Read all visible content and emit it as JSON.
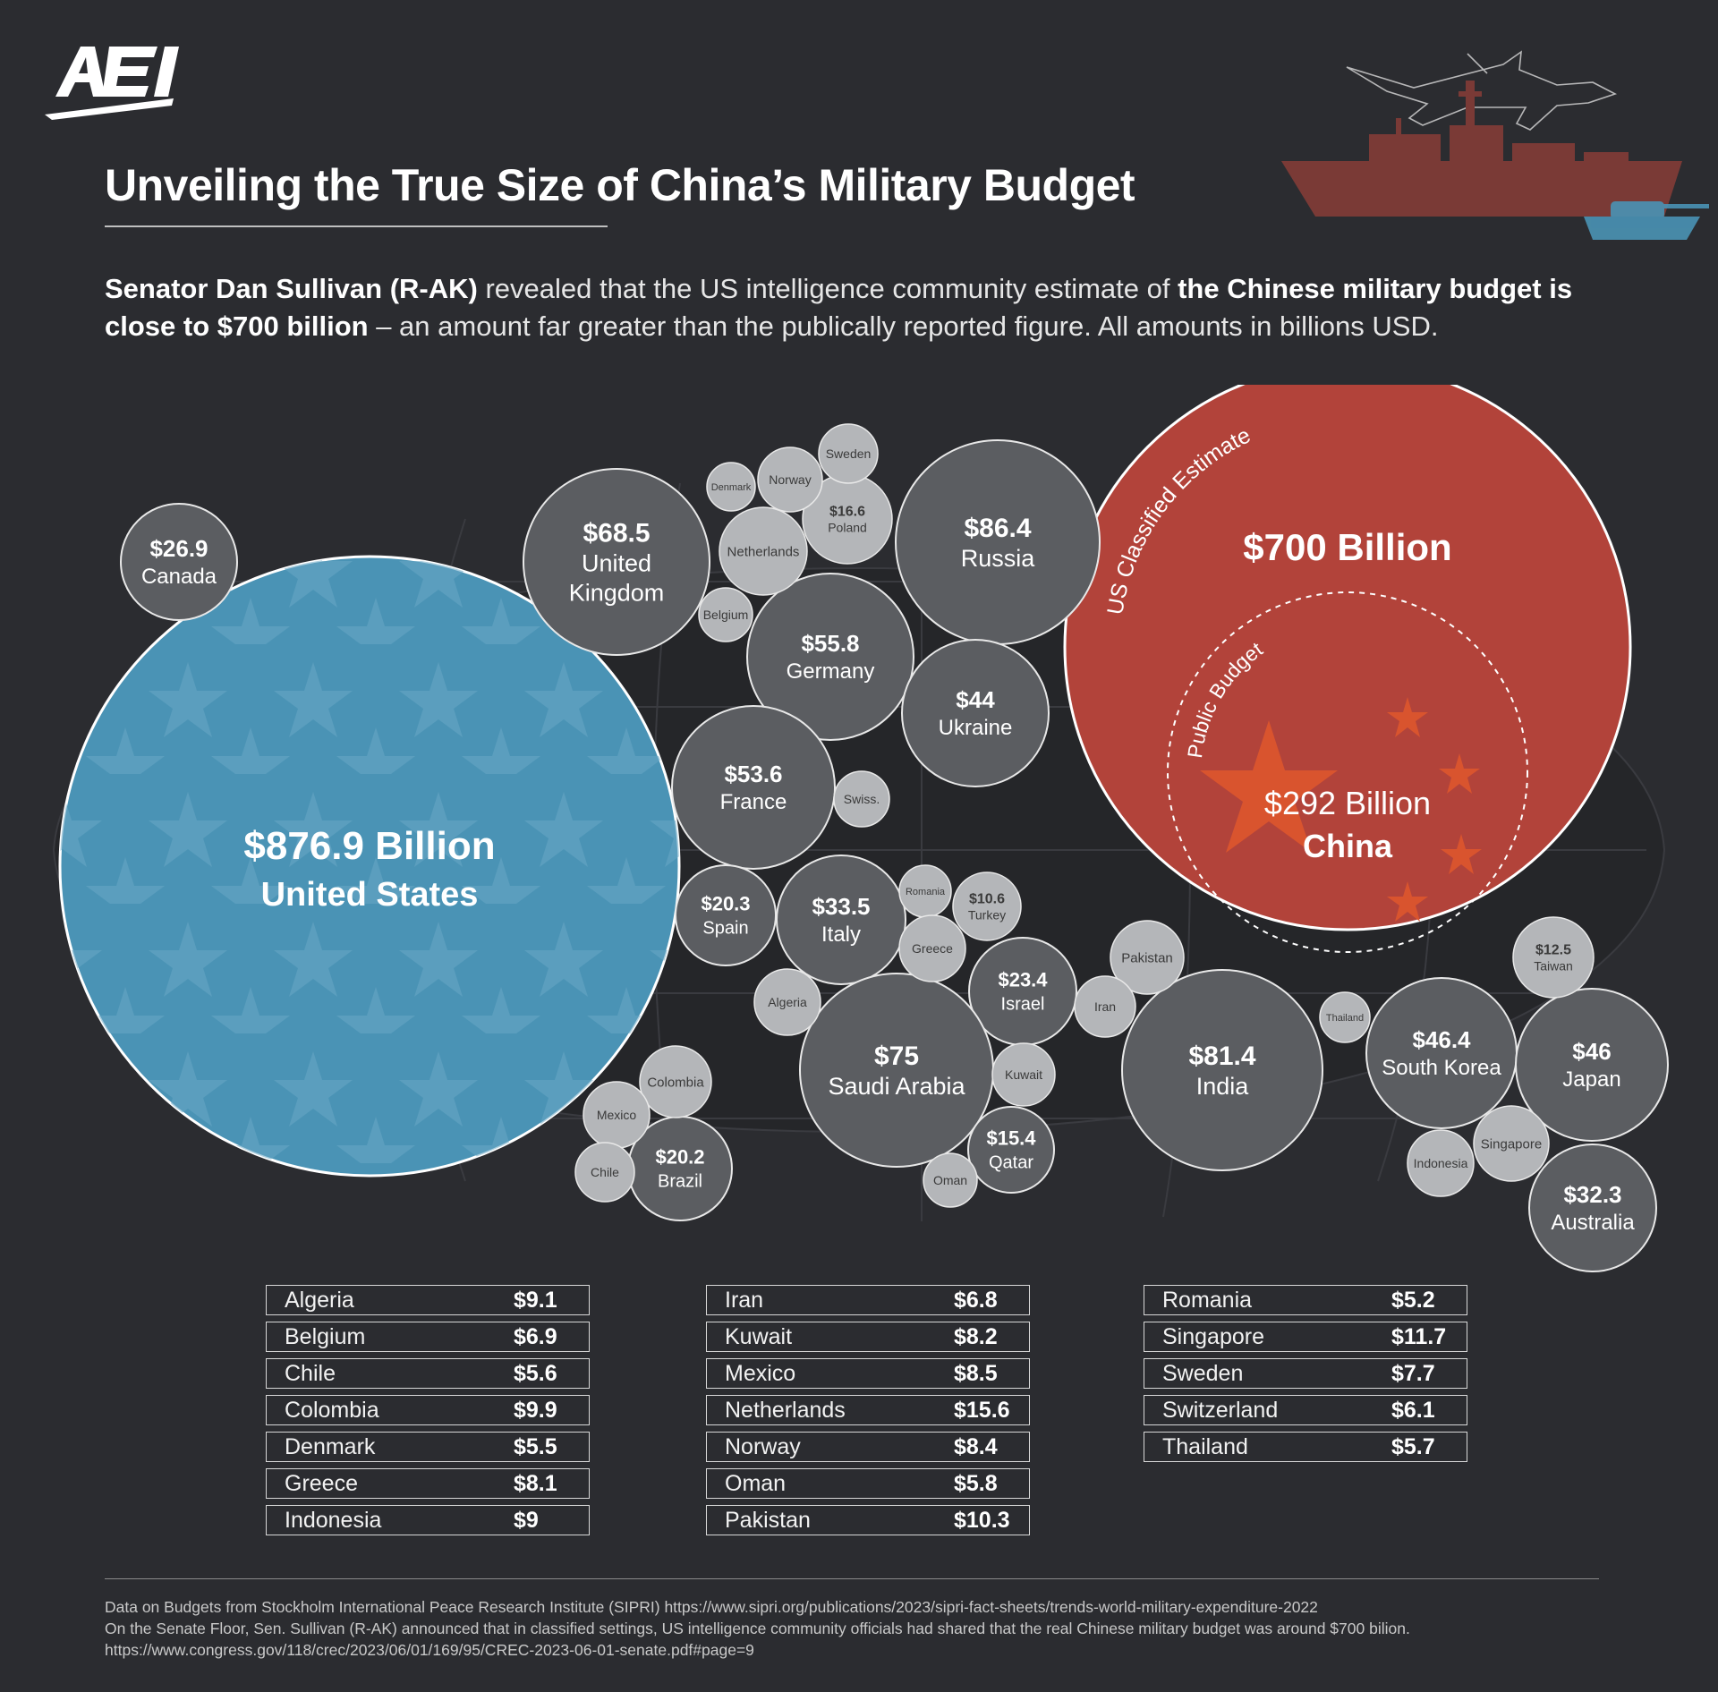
{
  "logo": {
    "text": "AEI"
  },
  "title": "Unveiling the True Size of China’s Military Budget",
  "subtitle": {
    "lead_bold": "Senator Dan Sullivan (R-AK)",
    "lead_rest": " revealed that the US intelligence community estimate of ",
    "highlight": "the Chinese military budget is close to $700 billion",
    "tail": " – an amount far greater than the publically reported figure. All amounts in billions USD."
  },
  "chart_data": {
    "type": "bubble",
    "unit": "billions USD",
    "china": {
      "name": "China",
      "estimate_label": "US Classified Estimate",
      "estimate_value": "$700 Billion",
      "estimate": 700,
      "public_label": "Public Budget",
      "public_value": "$292 Billion",
      "public": 292
    },
    "bubbles": [
      {
        "name": "United States",
        "label": "$876.9 Billion",
        "value": 876.9,
        "style": "us"
      },
      {
        "name": "Canada",
        "label": "$26.9",
        "value": 26.9,
        "style": "dark"
      },
      {
        "name": "United Kingdom",
        "label": "$68.5",
        "value": 68.5,
        "style": "dark"
      },
      {
        "name": "Russia",
        "label": "$86.4",
        "value": 86.4,
        "style": "dark"
      },
      {
        "name": "Germany",
        "label": "$55.8",
        "value": 55.8,
        "style": "dark"
      },
      {
        "name": "Ukraine",
        "label": "$44",
        "value": 44,
        "style": "dark"
      },
      {
        "name": "France",
        "label": "$53.6",
        "value": 53.6,
        "style": "dark"
      },
      {
        "name": "Spain",
        "label": "$20.3",
        "value": 20.3,
        "style": "dark"
      },
      {
        "name": "Italy",
        "label": "$33.5",
        "value": 33.5,
        "style": "dark"
      },
      {
        "name": "Israel",
        "label": "$23.4",
        "value": 23.4,
        "style": "dark"
      },
      {
        "name": "Saudi Arabia",
        "label": "$75",
        "value": 75,
        "style": "dark"
      },
      {
        "name": "Brazil",
        "label": "$20.2",
        "value": 20.2,
        "style": "dark"
      },
      {
        "name": "Qatar",
        "label": "$15.4",
        "value": 15.4,
        "style": "dark"
      },
      {
        "name": "India",
        "label": "$81.4",
        "value": 81.4,
        "style": "dark"
      },
      {
        "name": "South Korea",
        "label": "$46.4",
        "value": 46.4,
        "style": "dark"
      },
      {
        "name": "Japan",
        "label": "$46",
        "value": 46,
        "style": "dark"
      },
      {
        "name": "Australia",
        "label": "$32.3",
        "value": 32.3,
        "style": "dark"
      },
      {
        "name": "Poland",
        "label": "$16.6",
        "value": 16.6,
        "style": "light"
      },
      {
        "name": "Turkey",
        "label": "$10.6",
        "value": 10.6,
        "style": "light"
      },
      {
        "name": "Taiwan",
        "label": "$12.5",
        "value": 12.5,
        "style": "light"
      },
      {
        "name": "Sweden",
        "label": "",
        "value": 7.7,
        "style": "light"
      },
      {
        "name": "Norway",
        "label": "",
        "value": 8.4,
        "style": "light"
      },
      {
        "name": "Denmark",
        "label": "",
        "value": 5.5,
        "style": "light"
      },
      {
        "name": "Netherlands",
        "label": "",
        "value": 15.6,
        "style": "light"
      },
      {
        "name": "Belgium",
        "label": "",
        "value": 6.9,
        "style": "light"
      },
      {
        "name": "Swiss.",
        "label": "",
        "value": 6.1,
        "style": "light"
      },
      {
        "name": "Romania",
        "label": "",
        "value": 5.2,
        "style": "light"
      },
      {
        "name": "Greece",
        "label": "",
        "value": 8.1,
        "style": "light"
      },
      {
        "name": "Algeria",
        "label": "",
        "value": 9.1,
        "style": "light"
      },
      {
        "name": "Pakistan",
        "label": "",
        "value": 10.3,
        "style": "light"
      },
      {
        "name": "Iran",
        "label": "",
        "value": 6.8,
        "style": "light"
      },
      {
        "name": "Thailand",
        "label": "",
        "value": 5.7,
        "style": "light"
      },
      {
        "name": "Kuwait",
        "label": "",
        "value": 8.2,
        "style": "light"
      },
      {
        "name": "Oman",
        "label": "",
        "value": 5.8,
        "style": "light"
      },
      {
        "name": "Colombia",
        "label": "",
        "value": 9.9,
        "style": "light"
      },
      {
        "name": "Mexico",
        "label": "",
        "value": 8.5,
        "style": "light"
      },
      {
        "name": "Chile",
        "label": "",
        "value": 5.6,
        "style": "light"
      },
      {
        "name": "Indonesia",
        "label": "",
        "value": 9,
        "style": "light"
      },
      {
        "name": "Singapore",
        "label": "",
        "value": 11.7,
        "style": "light"
      }
    ]
  },
  "tables": [
    [
      {
        "name": "Algeria",
        "value": "$9.1"
      },
      {
        "name": "Belgium",
        "value": "$6.9"
      },
      {
        "name": "Chile",
        "value": "$5.6"
      },
      {
        "name": "Colombia",
        "value": "$9.9"
      },
      {
        "name": "Denmark",
        "value": "$5.5"
      },
      {
        "name": "Greece",
        "value": "$8.1"
      },
      {
        "name": "Indonesia",
        "value": "$9"
      }
    ],
    [
      {
        "name": "Iran",
        "value": "$6.8"
      },
      {
        "name": "Kuwait",
        "value": "$8.2"
      },
      {
        "name": "Mexico",
        "value": "$8.5"
      },
      {
        "name": "Netherlands",
        "value": "$15.6"
      },
      {
        "name": "Norway",
        "value": "$8.4"
      },
      {
        "name": "Oman",
        "value": "$5.8"
      },
      {
        "name": "Pakistan",
        "value": "$10.3"
      }
    ],
    [
      {
        "name": "Romania",
        "value": "$5.2"
      },
      {
        "name": "Singapore",
        "value": "$11.7"
      },
      {
        "name": "Sweden",
        "value": "$7.7"
      },
      {
        "name": "Switzerland",
        "value": "$6.1"
      },
      {
        "name": "Thailand",
        "value": "$5.7"
      }
    ]
  ],
  "sources": {
    "line1": "Data on Budgets from Stockholm International Peace Research Institute (SIPRI) https://www.sipri.org/publications/2023/sipri-fact-sheets/trends-world-military-expenditure-2022",
    "line2": "On the Senate Floor, Sen. Sullivan (R-AK) announced that in classified settings, US intelligence community officials had shared that the real Chinese military budget was around $700 bilion. https://www.congress.gov/118/crec/2023/06/01/169/95/CREC-2023-06-01-senate.pdf#page=9"
  },
  "colors": {
    "background": "#2b2c30",
    "us": "#4a93b5",
    "china": "#b2433a",
    "china_star": "#d9542e",
    "bubble_dark": "#5b5d61",
    "bubble_light": "#b4b6b9"
  }
}
